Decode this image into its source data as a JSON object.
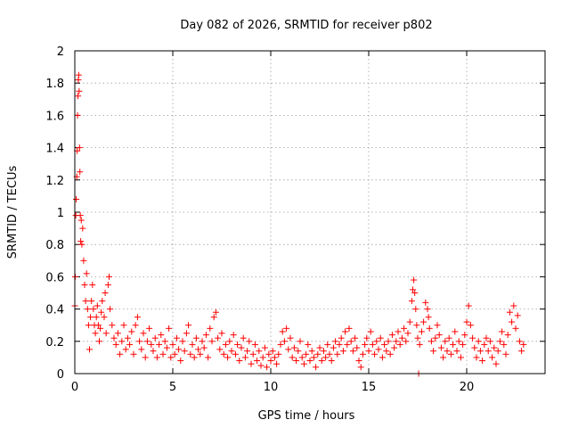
{
  "chart_data": {
    "type": "scatter",
    "title": "Day 082 of 2026, SRMTID for receiver p802",
    "xlabel": "GPS time / hours",
    "ylabel": "SRMTID / TECUs",
    "xlim": [
      0,
      24
    ],
    "ylim": [
      0,
      2
    ],
    "xticks": [
      0,
      5,
      10,
      15,
      20
    ],
    "xtick_labels": [
      "0",
      "5",
      "10",
      "15",
      "20"
    ],
    "yticks": [
      0,
      0.2,
      0.4,
      0.6,
      0.8,
      1,
      1.2,
      1.4,
      1.6,
      1.8,
      2
    ],
    "ytick_labels": [
      "0",
      "0.2",
      "0.4",
      "0.6",
      "0.8",
      "1",
      "1.2",
      "1.4",
      "1.6",
      "1.8",
      "2"
    ],
    "grid": true,
    "marker": "plus",
    "color": "#ff0000",
    "series": [
      {
        "name": "SRMTID",
        "points": [
          [
            0.0,
            0.42
          ],
          [
            0.02,
            0.6
          ],
          [
            0.05,
            0.98
          ],
          [
            0.07,
            1.08
          ],
          [
            0.1,
            1.22
          ],
          [
            0.12,
            1.38
          ],
          [
            0.14,
            1.6
          ],
          [
            0.16,
            1.72
          ],
          [
            0.18,
            1.82
          ],
          [
            0.2,
            1.85
          ],
          [
            0.22,
            1.75
          ],
          [
            0.24,
            1.4
          ],
          [
            0.26,
            1.25
          ],
          [
            0.28,
            0.98
          ],
          [
            0.3,
            0.82
          ],
          [
            0.33,
            0.95
          ],
          [
            0.36,
            0.8
          ],
          [
            0.4,
            0.9
          ],
          [
            0.45,
            0.7
          ],
          [
            0.5,
            0.55
          ],
          [
            0.55,
            0.45
          ],
          [
            0.6,
            0.62
          ],
          [
            0.65,
            0.4
          ],
          [
            0.7,
            0.3
          ],
          [
            0.75,
            0.15
          ],
          [
            0.8,
            0.35
          ],
          [
            0.85,
            0.45
          ],
          [
            0.9,
            0.55
          ],
          [
            0.95,
            0.4
          ],
          [
            1.0,
            0.3
          ],
          [
            1.05,
            0.25
          ],
          [
            1.1,
            0.35
          ],
          [
            1.15,
            0.42
          ],
          [
            1.2,
            0.3
          ],
          [
            1.25,
            0.2
          ],
          [
            1.3,
            0.28
          ],
          [
            1.35,
            0.38
          ],
          [
            1.4,
            0.45
          ],
          [
            1.5,
            0.35
          ],
          [
            1.55,
            0.5
          ],
          [
            1.6,
            0.25
          ],
          [
            1.7,
            0.55
          ],
          [
            1.75,
            0.6
          ],
          [
            1.8,
            0.4
          ],
          [
            1.9,
            0.3
          ],
          [
            2.0,
            0.22
          ],
          [
            2.1,
            0.18
          ],
          [
            2.2,
            0.25
          ],
          [
            2.3,
            0.12
          ],
          [
            2.4,
            0.2
          ],
          [
            2.5,
            0.3
          ],
          [
            2.6,
            0.15
          ],
          [
            2.7,
            0.22
          ],
          [
            2.8,
            0.18
          ],
          [
            2.9,
            0.26
          ],
          [
            3.0,
            0.12
          ],
          [
            3.1,
            0.3
          ],
          [
            3.2,
            0.35
          ],
          [
            3.3,
            0.2
          ],
          [
            3.4,
            0.15
          ],
          [
            3.5,
            0.25
          ],
          [
            3.6,
            0.1
          ],
          [
            3.7,
            0.2
          ],
          [
            3.8,
            0.28
          ],
          [
            3.9,
            0.18
          ],
          [
            4.0,
            0.14
          ],
          [
            4.1,
            0.22
          ],
          [
            4.2,
            0.1
          ],
          [
            4.3,
            0.18
          ],
          [
            4.4,
            0.24
          ],
          [
            4.5,
            0.12
          ],
          [
            4.6,
            0.2
          ],
          [
            4.7,
            0.16
          ],
          [
            4.8,
            0.28
          ],
          [
            4.9,
            0.1
          ],
          [
            5.0,
            0.18
          ],
          [
            5.1,
            0.12
          ],
          [
            5.2,
            0.22
          ],
          [
            5.3,
            0.15
          ],
          [
            5.4,
            0.08
          ],
          [
            5.5,
            0.2
          ],
          [
            5.6,
            0.14
          ],
          [
            5.7,
            0.25
          ],
          [
            5.8,
            0.3
          ],
          [
            5.9,
            0.12
          ],
          [
            6.0,
            0.18
          ],
          [
            6.1,
            0.1
          ],
          [
            6.2,
            0.22
          ],
          [
            6.3,
            0.15
          ],
          [
            6.4,
            0.12
          ],
          [
            6.5,
            0.2
          ],
          [
            6.6,
            0.16
          ],
          [
            6.7,
            0.24
          ],
          [
            6.8,
            0.1
          ],
          [
            6.9,
            0.28
          ],
          [
            7.0,
            0.2
          ],
          [
            7.1,
            0.35
          ],
          [
            7.2,
            0.38
          ],
          [
            7.3,
            0.22
          ],
          [
            7.4,
            0.15
          ],
          [
            7.5,
            0.25
          ],
          [
            7.6,
            0.12
          ],
          [
            7.7,
            0.18
          ],
          [
            7.8,
            0.1
          ],
          [
            7.9,
            0.2
          ],
          [
            8.0,
            0.14
          ],
          [
            8.1,
            0.24
          ],
          [
            8.2,
            0.12
          ],
          [
            8.3,
            0.18
          ],
          [
            8.4,
            0.08
          ],
          [
            8.5,
            0.16
          ],
          [
            8.6,
            0.22
          ],
          [
            8.7,
            0.1
          ],
          [
            8.8,
            0.14
          ],
          [
            8.9,
            0.2
          ],
          [
            9.0,
            0.06
          ],
          [
            9.1,
            0.12
          ],
          [
            9.2,
            0.18
          ],
          [
            9.3,
            0.08
          ],
          [
            9.4,
            0.14
          ],
          [
            9.5,
            0.05
          ],
          [
            9.6,
            0.1
          ],
          [
            9.7,
            0.16
          ],
          [
            9.8,
            0.04
          ],
          [
            9.9,
            0.12
          ],
          [
            10.0,
            0.08
          ],
          [
            10.1,
            0.14
          ],
          [
            10.2,
            0.1
          ],
          [
            10.3,
            0.06
          ],
          [
            10.4,
            0.12
          ],
          [
            10.5,
            0.18
          ],
          [
            10.6,
            0.26
          ],
          [
            10.7,
            0.2
          ],
          [
            10.8,
            0.28
          ],
          [
            10.9,
            0.15
          ],
          [
            11.0,
            0.22
          ],
          [
            11.1,
            0.1
          ],
          [
            11.2,
            0.16
          ],
          [
            11.3,
            0.08
          ],
          [
            11.4,
            0.14
          ],
          [
            11.5,
            0.2
          ],
          [
            11.6,
            0.1
          ],
          [
            11.7,
            0.06
          ],
          [
            11.8,
            0.12
          ],
          [
            11.9,
            0.18
          ],
          [
            12.0,
            0.08
          ],
          [
            12.1,
            0.14
          ],
          [
            12.2,
            0.1
          ],
          [
            12.3,
            0.04
          ],
          [
            12.4,
            0.12
          ],
          [
            12.5,
            0.16
          ],
          [
            12.6,
            0.08
          ],
          [
            12.7,
            0.14
          ],
          [
            12.8,
            0.1
          ],
          [
            12.9,
            0.18
          ],
          [
            13.0,
            0.12
          ],
          [
            13.1,
            0.08
          ],
          [
            13.2,
            0.16
          ],
          [
            13.3,
            0.2
          ],
          [
            13.4,
            0.12
          ],
          [
            13.5,
            0.18
          ],
          [
            13.6,
            0.22
          ],
          [
            13.7,
            0.14
          ],
          [
            13.8,
            0.26
          ],
          [
            13.9,
            0.18
          ],
          [
            14.0,
            0.28
          ],
          [
            14.1,
            0.2
          ],
          [
            14.2,
            0.14
          ],
          [
            14.3,
            0.22
          ],
          [
            14.4,
            0.16
          ],
          [
            14.5,
            0.08
          ],
          [
            14.6,
            0.04
          ],
          [
            14.7,
            0.12
          ],
          [
            14.8,
            0.18
          ],
          [
            14.9,
            0.22
          ],
          [
            15.0,
            0.14
          ],
          [
            15.1,
            0.26
          ],
          [
            15.2,
            0.18
          ],
          [
            15.3,
            0.12
          ],
          [
            15.4,
            0.2
          ],
          [
            15.5,
            0.15
          ],
          [
            15.6,
            0.22
          ],
          [
            15.7,
            0.1
          ],
          [
            15.8,
            0.18
          ],
          [
            15.9,
            0.14
          ],
          [
            16.0,
            0.2
          ],
          [
            16.1,
            0.12
          ],
          [
            16.2,
            0.24
          ],
          [
            16.3,
            0.16
          ],
          [
            16.4,
            0.2
          ],
          [
            16.5,
            0.26
          ],
          [
            16.6,
            0.18
          ],
          [
            16.7,
            0.22
          ],
          [
            16.8,
            0.28
          ],
          [
            16.9,
            0.2
          ],
          [
            17.0,
            0.25
          ],
          [
            17.1,
            0.32
          ],
          [
            17.2,
            0.45
          ],
          [
            17.25,
            0.52
          ],
          [
            17.3,
            0.58
          ],
          [
            17.35,
            0.5
          ],
          [
            17.4,
            0.4
          ],
          [
            17.45,
            0.3
          ],
          [
            17.5,
            0.22
          ],
          [
            17.55,
            0.0
          ],
          [
            17.6,
            0.18
          ],
          [
            17.7,
            0.26
          ],
          [
            17.8,
            0.32
          ],
          [
            17.9,
            0.44
          ],
          [
            18.0,
            0.4
          ],
          [
            18.05,
            0.35
          ],
          [
            18.1,
            0.28
          ],
          [
            18.2,
            0.2
          ],
          [
            18.3,
            0.14
          ],
          [
            18.4,
            0.22
          ],
          [
            18.5,
            0.3
          ],
          [
            18.6,
            0.24
          ],
          [
            18.7,
            0.16
          ],
          [
            18.8,
            0.1
          ],
          [
            18.9,
            0.2
          ],
          [
            19.0,
            0.14
          ],
          [
            19.1,
            0.22
          ],
          [
            19.2,
            0.12
          ],
          [
            19.3,
            0.18
          ],
          [
            19.4,
            0.26
          ],
          [
            19.5,
            0.14
          ],
          [
            19.6,
            0.2
          ],
          [
            19.7,
            0.1
          ],
          [
            19.8,
            0.18
          ],
          [
            19.9,
            0.24
          ],
          [
            20.0,
            0.32
          ],
          [
            20.1,
            0.42
          ],
          [
            20.2,
            0.3
          ],
          [
            20.3,
            0.22
          ],
          [
            20.4,
            0.16
          ],
          [
            20.5,
            0.1
          ],
          [
            20.6,
            0.2
          ],
          [
            20.7,
            0.14
          ],
          [
            20.8,
            0.08
          ],
          [
            20.9,
            0.18
          ],
          [
            21.0,
            0.22
          ],
          [
            21.1,
            0.14
          ],
          [
            21.2,
            0.2
          ],
          [
            21.3,
            0.1
          ],
          [
            21.4,
            0.16
          ],
          [
            21.5,
            0.06
          ],
          [
            21.6,
            0.14
          ],
          [
            21.7,
            0.2
          ],
          [
            21.8,
            0.26
          ],
          [
            21.9,
            0.18
          ],
          [
            22.0,
            0.12
          ],
          [
            22.1,
            0.24
          ],
          [
            22.2,
            0.38
          ],
          [
            22.3,
            0.32
          ],
          [
            22.4,
            0.42
          ],
          [
            22.5,
            0.28
          ],
          [
            22.6,
            0.36
          ],
          [
            22.7,
            0.2
          ],
          [
            22.8,
            0.14
          ],
          [
            22.9,
            0.18
          ]
        ]
      }
    ]
  }
}
